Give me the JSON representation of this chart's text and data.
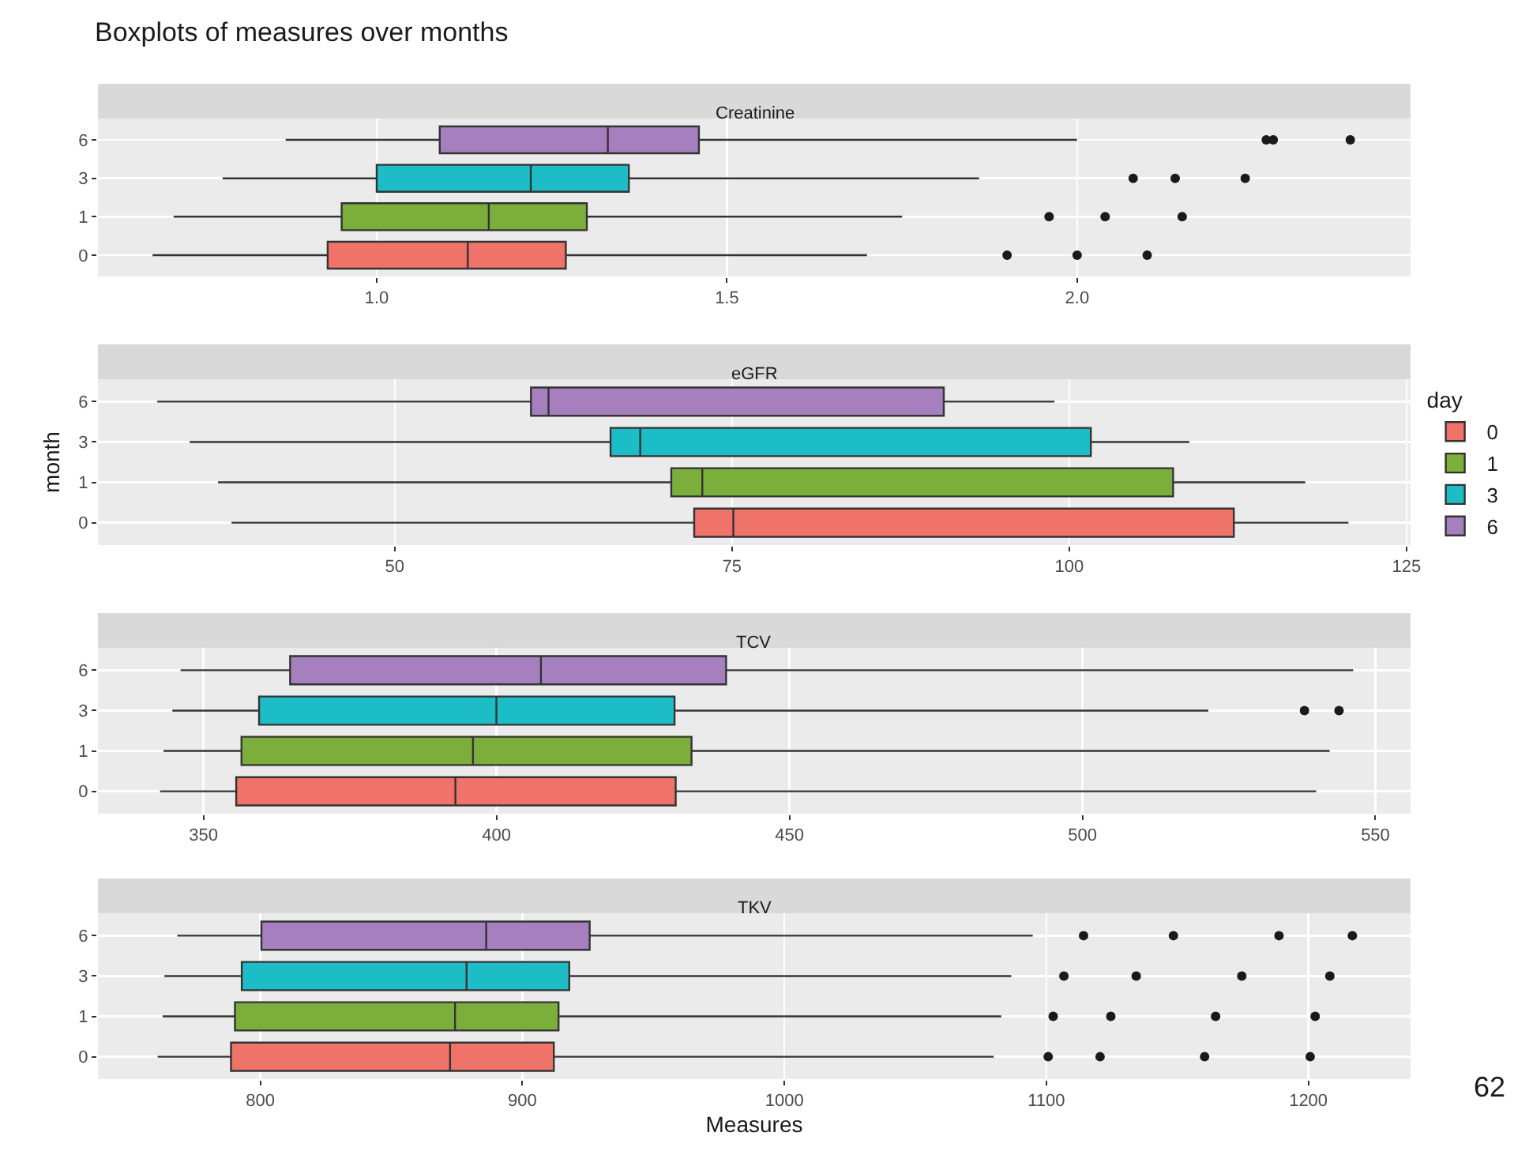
{
  "chart_data": [
    {
      "type": "box",
      "orientation": "horizontal",
      "title": "Boxplots of measures over months",
      "subtitle": "Creatinine",
      "categories": [
        "6",
        "3",
        "1",
        "0"
      ],
      "xlim": [
        0.602,
        2.476
      ],
      "xticks": [
        {
          "value": 1,
          "label": "1.0"
        },
        1.5,
        {
          "value": 2,
          "label": "2.0"
        }
      ],
      "grid": true,
      "series": [
        {
          "color": "#f0736a",
          "boxes": [
            null,
            null,
            null,
            {
              "low": 0.68,
              "q1": 0.93,
              "median": 1.13,
              "q3": 1.27,
              "high": 1.7,
              "outliers": [
                1.9,
                2.0,
                2.1
              ]
            }
          ]
        },
        {
          "color": "#7cae3c",
          "boxes": [
            null,
            null,
            {
              "low": 0.71,
              "q1": 0.95,
              "median": 1.16,
              "q3": 1.3,
              "high": 1.75,
              "outliers": [
                1.96,
                2.04,
                2.15
              ]
            },
            null
          ]
        },
        {
          "color": "#1dbdc7",
          "boxes": [
            null,
            {
              "low": 0.78,
              "q1": 1.0,
              "median": 1.22,
              "q3": 1.36,
              "high": 1.86,
              "outliers": [
                2.08,
                2.14,
                2.24
              ]
            },
            null,
            null
          ]
        },
        {
          "color": "#a67fbf",
          "boxes": [
            {
              "low": 0.87,
              "q1": 1.09,
              "median": 1.33,
              "q3": 1.46,
              "high": 2.0,
              "outliers": [
                2.27,
                2.28,
                2.39
              ]
            },
            null,
            null,
            null
          ]
        }
      ]
    },
    {
      "type": "box",
      "orientation": "horizontal",
      "subtitle": "eGFR",
      "ylabel": "month",
      "legend_title": "day",
      "legend": "right",
      "categories": [
        "6",
        "3",
        "1",
        "0"
      ],
      "xlim": [
        28,
        125.3
      ],
      "xticks": [
        50,
        75,
        100,
        125
      ],
      "grid": true,
      "series": [
        {
          "name": "0",
          "color": "#f0736a",
          "boxes": [
            null,
            null,
            null,
            {
              "low": 37.9,
              "q1": 72.2,
              "median": 75.1,
              "q3": 112.2,
              "high": 120.7
            }
          ]
        },
        {
          "name": "1",
          "color": "#7cae3c",
          "boxes": [
            null,
            null,
            {
              "low": 36.9,
              "q1": 70.5,
              "median": 72.8,
              "q3": 107.7,
              "high": 117.5
            },
            null
          ]
        },
        {
          "name": "3",
          "color": "#1dbdc7",
          "boxes": [
            null,
            {
              "low": 34.8,
              "q1": 66,
              "median": 68.2,
              "q3": 101.6,
              "high": 108.9
            },
            null,
            null
          ]
        },
        {
          "name": "6",
          "color": "#a67fbf",
          "boxes": [
            {
              "low": 32.4,
              "q1": 60.1,
              "median": 61.4,
              "q3": 90.7,
              "high": 98.9
            },
            null,
            null,
            null
          ]
        }
      ]
    },
    {
      "type": "box",
      "orientation": "horizontal",
      "subtitle": "TCV",
      "categories": [
        "6",
        "3",
        "1",
        "0"
      ],
      "xlim": [
        332,
        556
      ],
      "xticks": [
        350,
        400,
        450,
        500,
        550
      ],
      "grid": true,
      "series": [
        {
          "color": "#f0736a",
          "boxes": [
            null,
            null,
            null,
            {
              "low": 342.6,
              "q1": 355.6,
              "median": 393,
              "q3": 430.6,
              "high": 539.9
            }
          ]
        },
        {
          "color": "#7cae3c",
          "boxes": [
            null,
            null,
            {
              "low": 343.2,
              "q1": 356.5,
              "median": 396,
              "q3": 433.3,
              "high": 542.2
            },
            null
          ]
        },
        {
          "color": "#1dbdc7",
          "boxes": [
            null,
            {
              "low": 344.7,
              "q1": 359.5,
              "median": 400,
              "q3": 430.4,
              "high": 521.5,
              "outliers": [
                537.9,
                543.8
              ]
            },
            null,
            null
          ]
        },
        {
          "color": "#a67fbf",
          "boxes": [
            {
              "low": 346.1,
              "q1": 364.8,
              "median": 407.6,
              "q3": 439.2,
              "high": 546.2
            },
            null,
            null,
            null
          ]
        }
      ]
    },
    {
      "type": "box",
      "orientation": "horizontal",
      "subtitle": "TKV",
      "xlabel": "Measures",
      "annotations": [
        "62"
      ],
      "categories": [
        "6",
        "3",
        "1",
        "0"
      ],
      "xlim": [
        738,
        1239
      ],
      "xticks": [
        800,
        900,
        1000,
        1100,
        1200
      ],
      "grid": true,
      "series": [
        {
          "color": "#f0736a",
          "boxes": [
            null,
            null,
            null,
            {
              "low": 760.8,
              "q1": 788.8,
              "median": 872.4,
              "q3": 912,
              "high": 1079.9,
              "outliers": [
                1100.7,
                1120.5,
                1160.4,
                1200.7
              ]
            }
          ]
        },
        {
          "color": "#7cae3c",
          "boxes": [
            null,
            null,
            {
              "low": 762.7,
              "q1": 790.3,
              "median": 874.3,
              "q3": 913.8,
              "high": 1082.8,
              "outliers": [
                1102.6,
                1124.6,
                1164.6,
                1202.6
              ]
            },
            null
          ]
        },
        {
          "color": "#1dbdc7",
          "boxes": [
            null,
            {
              "low": 763.4,
              "q1": 792.9,
              "median": 878.7,
              "q3": 917.9,
              "high": 1086.6,
              "outliers": [
                1106.7,
                1134.3,
                1174.6,
                1208.2
              ]
            },
            null,
            null
          ]
        },
        {
          "color": "#a67fbf",
          "boxes": [
            {
              "low": 768.3,
              "q1": 800.4,
              "median": 886.2,
              "q3": 925.7,
              "high": 1094.8,
              "outliers": [
                1114.2,
                1148.5,
                1188.8,
                1216.8
              ]
            },
            null,
            null,
            null
          ]
        }
      ]
    }
  ]
}
